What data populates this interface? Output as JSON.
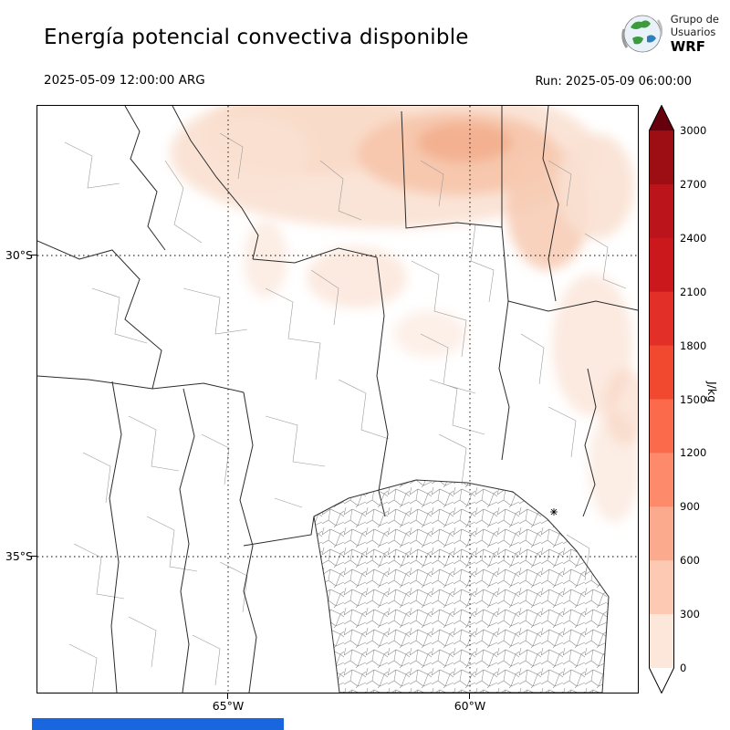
{
  "header": {
    "title": "Energía potencial convectiva disponible",
    "logo": {
      "line1": "Grupo de",
      "line2": "Usuarios",
      "line3": "WRF"
    }
  },
  "times": {
    "valid": "2025-05-09 12:00:00 ARG",
    "run": "Run: 2025-05-09 06:00:00"
  },
  "map": {
    "lat_ticks": [
      "30°S",
      "35°S"
    ],
    "lon_ticks": [
      "65°W",
      "60°W"
    ]
  },
  "colorbar": {
    "label": "J/kg",
    "ticks": [
      "3000",
      "2700",
      "2400",
      "2100",
      "1800",
      "1500",
      "1200",
      "900",
      "600",
      "300",
      "0"
    ],
    "colors_top_to_bottom": [
      "#9c0d14",
      "#bb141a",
      "#cb181d",
      "#e23028",
      "#f1492f",
      "#fb6a4a",
      "#fc8a6b",
      "#fcaa8d",
      "#fdc9b2",
      "#fde7da"
    ],
    "over_color": "#67000d",
    "under_color": "#ffffff",
    "outline_color": "#000000"
  },
  "footer_bar_color": "#1a66df",
  "chart_data": {
    "type": "heatmap",
    "title": "Energía potencial convectiva disponible",
    "units": "J/kg",
    "levels": [
      0,
      300,
      600,
      900,
      1200,
      1500,
      1800,
      2100,
      2400,
      2700,
      3000
    ],
    "lat_ticks": [
      "30°S",
      "35°S"
    ],
    "lon_ticks": [
      "65°W",
      "60°W"
    ],
    "valid_time": "2025-05-09 12:00:00 ARG",
    "run_time": "2025-05-09 06:00:00",
    "observed_pattern": "Light CAPE shading (roughly 0-900 J/kg) over the north and northeast of the domain, strongest near the top center-right; near zero over the rest of the map"
  }
}
